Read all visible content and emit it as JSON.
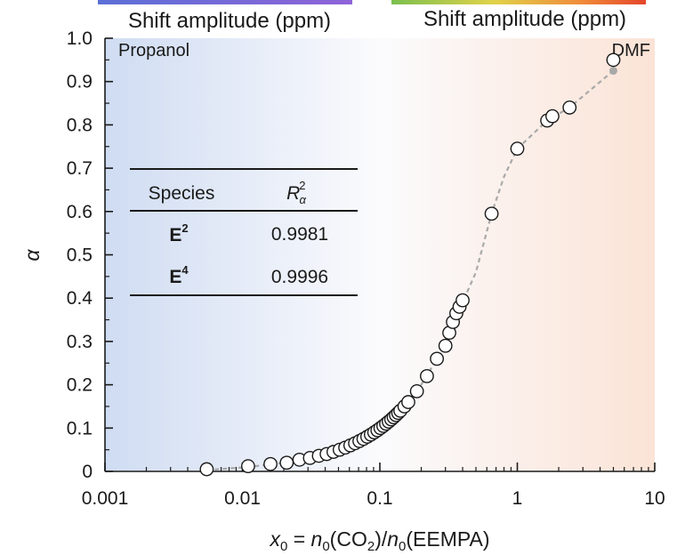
{
  "header": {
    "left_label": "Shift amplitude (ppm)",
    "right_label": "Shift amplitude (ppm)"
  },
  "background": {
    "left_label": "Propanol",
    "right_label": "DMF",
    "left_color": "#cfdcf2",
    "right_color": "#fbe3d6",
    "left_label_color": "#8ea6dd",
    "right_label_color": "#f2b597"
  },
  "colorbars": {
    "left": [
      "#5b6fd6",
      "#8f63d9"
    ],
    "right": [
      "#7bbf4f",
      "#e0d24a",
      "#f08a3a",
      "#e5452a"
    ]
  },
  "table": {
    "col1_header": "Species",
    "col2_header_base": "R",
    "col2_header_sup": "2",
    "col2_header_sub": "α",
    "rows": [
      {
        "species": "E",
        "sup": "2",
        "value": "0.9981"
      },
      {
        "species": "E",
        "sup": "4",
        "value": "0.9996"
      }
    ]
  },
  "chart_data": {
    "type": "scatter",
    "xscale": "log",
    "xlim": [
      0.001,
      10
    ],
    "ylim": [
      0,
      1.0
    ],
    "xlabel": "x0 = n0(CO2)/n0(EEMPA)",
    "ylabel": "α",
    "xtick_labels": [
      "0.001",
      "0.01",
      "0.1",
      "1",
      "10"
    ],
    "ytick_labels": [
      "0",
      "0.1",
      "0.2",
      "0.3",
      "0.4",
      "0.5",
      "0.6",
      "0.7",
      "0.8",
      "0.9",
      "1.0"
    ],
    "grid": false,
    "series": [
      {
        "marker": "open-circle",
        "x": [
          0.0055,
          0.011,
          0.016,
          0.021,
          0.026,
          0.031,
          0.036,
          0.041,
          0.046,
          0.051,
          0.056,
          0.061,
          0.066,
          0.071,
          0.076,
          0.081,
          0.086,
          0.091,
          0.096,
          0.101,
          0.106,
          0.111,
          0.116,
          0.121,
          0.126,
          0.131,
          0.136,
          0.141,
          0.151,
          0.161,
          0.186,
          0.22,
          0.26,
          0.3,
          0.32,
          0.34,
          0.36,
          0.38,
          0.4,
          0.65,
          1.0,
          1.65,
          1.8,
          2.4,
          5.0
        ],
        "y": [
          0.005,
          0.012,
          0.017,
          0.02,
          0.027,
          0.031,
          0.036,
          0.04,
          0.045,
          0.05,
          0.055,
          0.06,
          0.065,
          0.07,
          0.075,
          0.08,
          0.085,
          0.09,
          0.095,
          0.1,
          0.105,
          0.11,
          0.115,
          0.12,
          0.125,
          0.13,
          0.135,
          0.14,
          0.15,
          0.16,
          0.185,
          0.22,
          0.26,
          0.29,
          0.32,
          0.345,
          0.365,
          0.38,
          0.395,
          0.595,
          0.745,
          0.81,
          0.82,
          0.84,
          0.95
        ]
      },
      {
        "marker": "dashed-line",
        "color": "#a9a9a9",
        "x": [
          0.0055,
          0.011,
          0.02,
          0.04,
          0.07,
          0.1,
          0.15,
          0.2,
          0.26,
          0.32,
          0.4,
          0.5,
          0.65,
          0.8,
          1.0,
          1.65,
          2.4,
          5.0
        ],
        "y": [
          0.003,
          0.01,
          0.02,
          0.04,
          0.07,
          0.1,
          0.148,
          0.2,
          0.26,
          0.32,
          0.39,
          0.46,
          0.595,
          0.68,
          0.745,
          0.81,
          0.84,
          0.925
        ]
      }
    ]
  }
}
